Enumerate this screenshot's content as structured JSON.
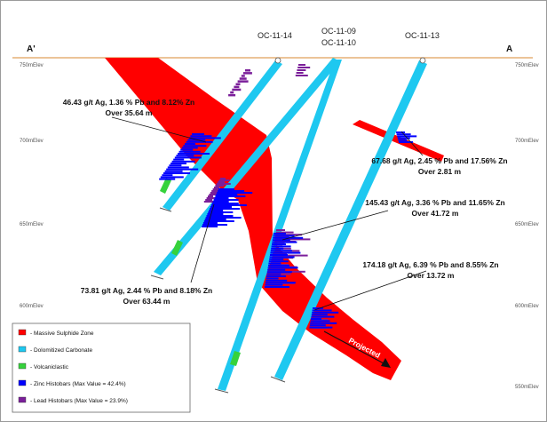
{
  "section": {
    "left_end": "A'",
    "right_end": "A",
    "colors": {
      "zone": "#ff0000",
      "carbonate": "#1ec8f0",
      "volcanic": "#36d23c",
      "zinc": "#0000ff",
      "lead": "#7b1f9a",
      "surface": "#e0a05a"
    }
  },
  "elevations": {
    "left": [
      "750mElev",
      "700mElev",
      "650mElev",
      "600mElev"
    ],
    "right": [
      "750mElev",
      "700mElev",
      "650mElev",
      "600mElev",
      "550mElev"
    ]
  },
  "drill_holes": [
    "OC-11-14",
    "OC-11-09",
    "OC-11-10",
    "OC-11-13"
  ],
  "intercepts": [
    {
      "line1": "46.43 g/t Ag, 1.36 % Pb and 8.12% Zn",
      "line2": "Over 35.64 m"
    },
    {
      "line1": "67.68 g/t Ag, 2.45 % Pb and 17.56% Zn",
      "line2": "Over 2.81 m"
    },
    {
      "line1": "145.43 g/t Ag, 3.36 % Pb and 11.65% Zn",
      "line2": "Over 41.72 m"
    },
    {
      "line1": "174.18 g/t Ag, 6.39 % Pb and 8.55% Zn",
      "line2": "Over 13.72 m"
    },
    {
      "line1": "73.81 g/t Ag, 2.44 % Pb and 8.18% Zn",
      "line2": "Over 63.44 m"
    }
  ],
  "projected_label": "Projected",
  "legend": [
    {
      "label": "- Massive Sulphide Zone",
      "color": "#ff0000"
    },
    {
      "label": "- Dolomitized Carbonate",
      "color": "#1ec8f0"
    },
    {
      "label": "- Volcaniclastic",
      "color": "#36d23c"
    },
    {
      "label": "- Zinc Histobars (Max Value = 42.4%)",
      "color": "#0000ff"
    },
    {
      "label": "- Lead Histobars (Max Value = 23.9%)",
      "color": "#7b1f9a"
    }
  ]
}
